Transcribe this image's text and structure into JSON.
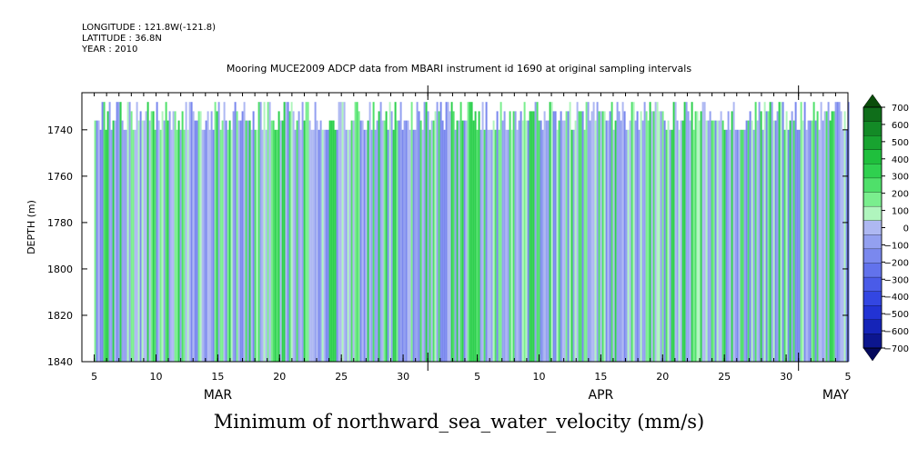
{
  "header": {
    "longitude": "LONGITUDE : 121.8W(-121.8)",
    "latitude": "LATITUDE : 36.8N",
    "year": "YEAR : 2010"
  },
  "caption": "Minimum of northward_sea_water_velocity (mm/s)",
  "chart_data": {
    "type": "heatmap",
    "title": "Mooring MUCE2009 ADCP data from MBARI instrument id 1690 at original sampling intervals",
    "xlabel": "",
    "ylabel": "DEPTH (m)",
    "x_range": [
      "2010-03-04",
      "2010-05-05"
    ],
    "ylim": [
      1840,
      1724
    ],
    "y_ticks": [
      1740,
      1760,
      1780,
      1800,
      1820,
      1840
    ],
    "x_tick_labels": [
      "5",
      "10",
      "15",
      "20",
      "25",
      "30",
      "5",
      "10",
      "15",
      "20",
      "25",
      "30",
      "5"
    ],
    "month_labels": [
      "MAR",
      "APR",
      "MAY"
    ],
    "data_start": "2010-03-05",
    "data_end": "2010-05-05",
    "colorbar": {
      "levels": [
        700,
        600,
        500,
        400,
        300,
        200,
        100,
        0,
        -100,
        -200,
        -300,
        -400,
        -500,
        -600,
        -700
      ],
      "colors": [
        "#0a4d0a",
        "#0f6e1a",
        "#138a26",
        "#18a330",
        "#1fbf3d",
        "#2fd04f",
        "#4fe06a",
        "#7aee8e",
        "#b0f5be",
        "#aeb8f2",
        "#93a0f0",
        "#7a88ee",
        "#6272ec",
        "#4a5be8",
        "#3346e2",
        "#2233d4",
        "#1524b8",
        "#0c168f",
        "#05095c"
      ]
    },
    "grid": false,
    "legend": "right colorbar"
  }
}
